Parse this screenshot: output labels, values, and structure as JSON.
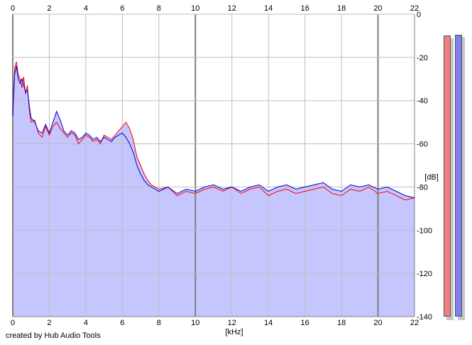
{
  "footer": {
    "credit": "created by Hub Audio Tools"
  },
  "colors": {
    "background": "#ffffff",
    "plot_fill": "#c6c6ff",
    "grid_minor": "#bdbdbd",
    "grid_major": "#808080",
    "channel_left": "#ff0000",
    "channel_right": "#0000d0",
    "meter_left": "#f08080",
    "meter_right": "#8080f0"
  },
  "meters": {
    "left_level_db": -10,
    "right_level_db": -9.5
  },
  "chart_data": {
    "type": "line",
    "xlabel": "[kHz]",
    "ylabel": "[dB]",
    "xlim": [
      0,
      22
    ],
    "ylim": [
      -140,
      0
    ],
    "x_ticks": [
      "0",
      "2",
      "4",
      "6",
      "8",
      "10",
      "12",
      "14",
      "16",
      "18",
      "20",
      "22"
    ],
    "y_ticks": [
      "0",
      "-20",
      "-40",
      "-60",
      "-80",
      "-100",
      "-120",
      "-140"
    ],
    "grid": true,
    "series": [
      {
        "color": "#ff0000",
        "x": [
          0,
          0.1,
          0.2,
          0.3,
          0.4,
          0.5,
          0.6,
          0.7,
          0.8,
          0.9,
          1.0,
          1.2,
          1.4,
          1.6,
          1.8,
          2.0,
          2.2,
          2.4,
          2.6,
          2.8,
          3.0,
          3.2,
          3.4,
          3.6,
          3.8,
          4.0,
          4.2,
          4.4,
          4.6,
          4.8,
          5.0,
          5.2,
          5.4,
          5.6,
          5.8,
          6.0,
          6.2,
          6.4,
          6.6,
          6.8,
          7.0,
          7.2,
          7.4,
          7.6,
          7.8,
          8.0,
          8.5,
          9.0,
          9.5,
          10.0,
          10.5,
          11.0,
          11.5,
          12.0,
          12.5,
          13.0,
          13.5,
          14.0,
          14.5,
          15.0,
          15.5,
          16.0,
          16.5,
          17.0,
          17.5,
          18.0,
          18.5,
          19.0,
          19.5,
          20.0,
          20.5,
          21.0,
          21.5,
          22.0
        ],
        "values": [
          -45,
          -25,
          -22,
          -28,
          -30,
          -34,
          -29,
          -37,
          -33,
          -44,
          -50,
          -49,
          -55,
          -57,
          -52,
          -56,
          -52,
          -50,
          -53,
          -55,
          -57,
          -55,
          -56,
          -60,
          -58,
          -56,
          -57,
          -59,
          -58,
          -60,
          -56,
          -57,
          -58,
          -56,
          -54,
          -52,
          -50,
          -53,
          -58,
          -66,
          -70,
          -74,
          -77,
          -79,
          -80,
          -81,
          -80,
          -84,
          -82,
          -83,
          -81,
          -80,
          -82,
          -80,
          -83,
          -81,
          -80,
          -84,
          -82,
          -81,
          -83,
          -82,
          -81,
          -80,
          -83,
          -84,
          -81,
          -82,
          -80,
          -83,
          -82,
          -84,
          -86,
          -85
        ]
      },
      {
        "color": "#0000d0",
        "x": [
          0,
          0.1,
          0.2,
          0.3,
          0.4,
          0.5,
          0.6,
          0.7,
          0.8,
          0.9,
          1.0,
          1.2,
          1.4,
          1.6,
          1.8,
          2.0,
          2.2,
          2.4,
          2.6,
          2.8,
          3.0,
          3.2,
          3.4,
          3.6,
          3.8,
          4.0,
          4.2,
          4.4,
          4.6,
          4.8,
          5.0,
          5.2,
          5.4,
          5.6,
          5.8,
          6.0,
          6.2,
          6.4,
          6.6,
          6.8,
          7.0,
          7.2,
          7.4,
          7.6,
          7.8,
          8.0,
          8.5,
          9.0,
          9.5,
          10.0,
          10.5,
          11.0,
          11.5,
          12.0,
          12.5,
          13.0,
          13.5,
          14.0,
          14.5,
          15.0,
          15.5,
          16.0,
          16.5,
          17.0,
          17.5,
          18.0,
          18.5,
          19.0,
          19.5,
          20.0,
          20.5,
          21.0,
          21.5,
          22.0
        ],
        "values": [
          -47,
          -28,
          -24,
          -30,
          -32,
          -30,
          -33,
          -36,
          -35,
          -42,
          -48,
          -50,
          -54,
          -55,
          -51,
          -55,
          -50,
          -45,
          -49,
          -54,
          -56,
          -54,
          -55,
          -58,
          -57,
          -55,
          -56,
          -58,
          -57,
          -59,
          -57,
          -58,
          -59,
          -57,
          -56,
          -55,
          -57,
          -60,
          -64,
          -70,
          -74,
          -77,
          -79,
          -80,
          -81,
          -82,
          -80,
          -83,
          -81,
          -82,
          -80,
          -79,
          -81,
          -80,
          -82,
          -80,
          -79,
          -82,
          -80,
          -79,
          -81,
          -80,
          -79,
          -78,
          -81,
          -82,
          -79,
          -80,
          -79,
          -81,
          -80,
          -82,
          -84,
          -85
        ]
      }
    ]
  }
}
